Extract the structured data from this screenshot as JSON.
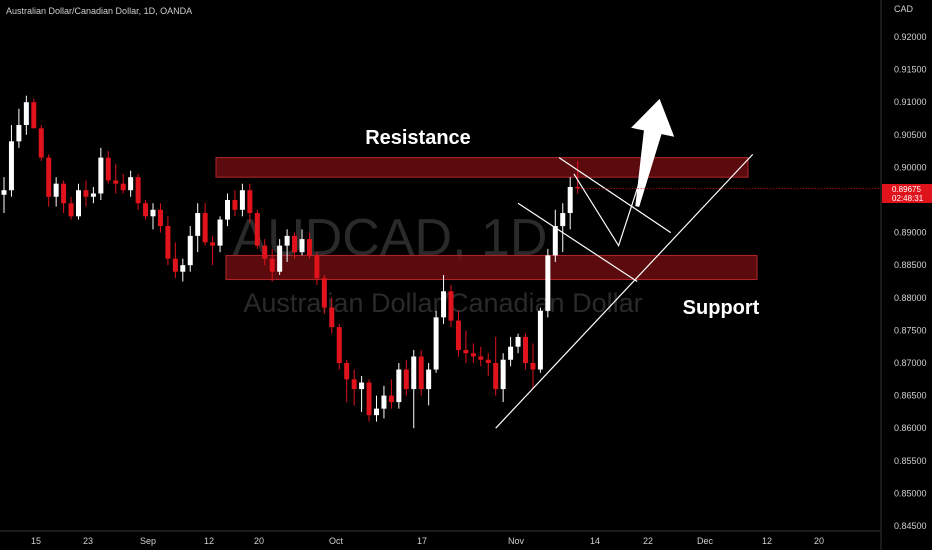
{
  "header": {
    "title": "Australian Dollar/Canadian Dollar, 1D, OANDA"
  },
  "watermark": {
    "symbol": "AUDCAD, 1D",
    "name": "Australian Dollar/Canadian Dollar"
  },
  "price_axis": {
    "currency": "CAD",
    "labels": [
      "0.92000",
      "0.91500",
      "0.91000",
      "0.90500",
      "0.90000",
      "0.89500",
      "0.89000",
      "0.88500",
      "0.88000",
      "0.87500",
      "0.87000",
      "0.86500",
      "0.86000",
      "0.85500",
      "0.85000",
      "0.84500"
    ],
    "last_price": "0.89675",
    "countdown": "02:48:31"
  },
  "time_axis": {
    "labels": [
      "15",
      "23",
      "Sep",
      "12",
      "20",
      "Oct",
      "17",
      "Nov",
      "14",
      "22",
      "Dec",
      "12",
      "20"
    ]
  },
  "annotations": {
    "resistance": "Resistance",
    "support": "Support"
  },
  "colors": {
    "background": "#000000",
    "up": "#ffffff",
    "down": "#e0121b",
    "zone": "#6b0d0f",
    "zone_border": "#b3262b",
    "price_tag": "#e0121b"
  },
  "chart_data": {
    "type": "candlestick",
    "symbol": "AUDCAD",
    "timeframe": "1D",
    "title": "Australian Dollar/Canadian Dollar, 1D, OANDA",
    "ylim": [
      0.8445,
      0.9235
    ],
    "zones": [
      {
        "label": "Resistance",
        "from": 0.8985,
        "to": 0.9015
      },
      {
        "label": "Support",
        "from": 0.8828,
        "to": 0.8865
      }
    ],
    "candles": [
      {
        "o": 0.8958,
        "h": 0.8985,
        "l": 0.893,
        "c": 0.8965
      },
      {
        "o": 0.8965,
        "h": 0.9065,
        "l": 0.8955,
        "c": 0.904
      },
      {
        "o": 0.904,
        "h": 0.909,
        "l": 0.903,
        "c": 0.9065
      },
      {
        "o": 0.9065,
        "h": 0.911,
        "l": 0.905,
        "c": 0.91
      },
      {
        "o": 0.91,
        "h": 0.9105,
        "l": 0.906,
        "c": 0.906
      },
      {
        "o": 0.906,
        "h": 0.9065,
        "l": 0.901,
        "c": 0.9015
      },
      {
        "o": 0.9015,
        "h": 0.902,
        "l": 0.894,
        "c": 0.8955
      },
      {
        "o": 0.8955,
        "h": 0.8985,
        "l": 0.894,
        "c": 0.8975
      },
      {
        "o": 0.8975,
        "h": 0.898,
        "l": 0.893,
        "c": 0.8945
      },
      {
        "o": 0.8945,
        "h": 0.8955,
        "l": 0.892,
        "c": 0.8925
      },
      {
        "o": 0.8925,
        "h": 0.8975,
        "l": 0.892,
        "c": 0.8965
      },
      {
        "o": 0.8965,
        "h": 0.898,
        "l": 0.894,
        "c": 0.8955
      },
      {
        "o": 0.8955,
        "h": 0.897,
        "l": 0.8945,
        "c": 0.896
      },
      {
        "o": 0.896,
        "h": 0.903,
        "l": 0.895,
        "c": 0.9015
      },
      {
        "o": 0.9015,
        "h": 0.9025,
        "l": 0.8975,
        "c": 0.898
      },
      {
        "o": 0.898,
        "h": 0.9005,
        "l": 0.896,
        "c": 0.8975
      },
      {
        "o": 0.8975,
        "h": 0.899,
        "l": 0.896,
        "c": 0.8965
      },
      {
        "o": 0.8965,
        "h": 0.8995,
        "l": 0.8955,
        "c": 0.8985
      },
      {
        "o": 0.8985,
        "h": 0.899,
        "l": 0.8935,
        "c": 0.8945
      },
      {
        "o": 0.8945,
        "h": 0.895,
        "l": 0.892,
        "c": 0.8925
      },
      {
        "o": 0.8925,
        "h": 0.8945,
        "l": 0.8905,
        "c": 0.8935
      },
      {
        "o": 0.8935,
        "h": 0.8945,
        "l": 0.89,
        "c": 0.891
      },
      {
        "o": 0.891,
        "h": 0.8925,
        "l": 0.885,
        "c": 0.886
      },
      {
        "o": 0.886,
        "h": 0.8885,
        "l": 0.883,
        "c": 0.884
      },
      {
        "o": 0.884,
        "h": 0.886,
        "l": 0.8825,
        "c": 0.885
      },
      {
        "o": 0.885,
        "h": 0.891,
        "l": 0.884,
        "c": 0.8895
      },
      {
        "o": 0.8895,
        "h": 0.8945,
        "l": 0.887,
        "c": 0.893
      },
      {
        "o": 0.893,
        "h": 0.8945,
        "l": 0.888,
        "c": 0.8885
      },
      {
        "o": 0.8885,
        "h": 0.8895,
        "l": 0.885,
        "c": 0.888
      },
      {
        "o": 0.888,
        "h": 0.8925,
        "l": 0.887,
        "c": 0.892
      },
      {
        "o": 0.892,
        "h": 0.896,
        "l": 0.891,
        "c": 0.895
      },
      {
        "o": 0.895,
        "h": 0.8965,
        "l": 0.8925,
        "c": 0.8935
      },
      {
        "o": 0.8935,
        "h": 0.8975,
        "l": 0.8925,
        "c": 0.8965
      },
      {
        "o": 0.8965,
        "h": 0.8975,
        "l": 0.8915,
        "c": 0.893
      },
      {
        "o": 0.893,
        "h": 0.8935,
        "l": 0.8875,
        "c": 0.888
      },
      {
        "o": 0.888,
        "h": 0.889,
        "l": 0.885,
        "c": 0.886
      },
      {
        "o": 0.886,
        "h": 0.8875,
        "l": 0.8825,
        "c": 0.884
      },
      {
        "o": 0.884,
        "h": 0.889,
        "l": 0.8835,
        "c": 0.888
      },
      {
        "o": 0.888,
        "h": 0.8905,
        "l": 0.8855,
        "c": 0.8895
      },
      {
        "o": 0.8895,
        "h": 0.89,
        "l": 0.886,
        "c": 0.887
      },
      {
        "o": 0.887,
        "h": 0.8905,
        "l": 0.8865,
        "c": 0.889
      },
      {
        "o": 0.889,
        "h": 0.89,
        "l": 0.886,
        "c": 0.8865
      },
      {
        "o": 0.8865,
        "h": 0.887,
        "l": 0.882,
        "c": 0.883
      },
      {
        "o": 0.883,
        "h": 0.8835,
        "l": 0.8775,
        "c": 0.8785
      },
      {
        "o": 0.8785,
        "h": 0.88,
        "l": 0.8745,
        "c": 0.8755
      },
      {
        "o": 0.8755,
        "h": 0.876,
        "l": 0.869,
        "c": 0.87
      },
      {
        "o": 0.87,
        "h": 0.8705,
        "l": 0.864,
        "c": 0.8675
      },
      {
        "o": 0.8675,
        "h": 0.869,
        "l": 0.8635,
        "c": 0.866
      },
      {
        "o": 0.866,
        "h": 0.868,
        "l": 0.8625,
        "c": 0.867
      },
      {
        "o": 0.867,
        "h": 0.8675,
        "l": 0.861,
        "c": 0.862
      },
      {
        "o": 0.862,
        "h": 0.865,
        "l": 0.861,
        "c": 0.863
      },
      {
        "o": 0.863,
        "h": 0.8665,
        "l": 0.8615,
        "c": 0.865
      },
      {
        "o": 0.865,
        "h": 0.8675,
        "l": 0.863,
        "c": 0.864
      },
      {
        "o": 0.864,
        "h": 0.87,
        "l": 0.863,
        "c": 0.869
      },
      {
        "o": 0.869,
        "h": 0.8705,
        "l": 0.865,
        "c": 0.866
      },
      {
        "o": 0.866,
        "h": 0.872,
        "l": 0.86,
        "c": 0.871
      },
      {
        "o": 0.871,
        "h": 0.872,
        "l": 0.865,
        "c": 0.866
      },
      {
        "o": 0.866,
        "h": 0.87,
        "l": 0.8635,
        "c": 0.869
      },
      {
        "o": 0.869,
        "h": 0.878,
        "l": 0.8685,
        "c": 0.877
      },
      {
        "o": 0.877,
        "h": 0.8835,
        "l": 0.876,
        "c": 0.881
      },
      {
        "o": 0.881,
        "h": 0.882,
        "l": 0.8755,
        "c": 0.8765
      },
      {
        "o": 0.8765,
        "h": 0.878,
        "l": 0.871,
        "c": 0.872
      },
      {
        "o": 0.872,
        "h": 0.875,
        "l": 0.87,
        "c": 0.8715
      },
      {
        "o": 0.8715,
        "h": 0.873,
        "l": 0.87,
        "c": 0.871
      },
      {
        "o": 0.871,
        "h": 0.8725,
        "l": 0.8695,
        "c": 0.8705
      },
      {
        "o": 0.8705,
        "h": 0.8715,
        "l": 0.868,
        "c": 0.87
      },
      {
        "o": 0.87,
        "h": 0.874,
        "l": 0.865,
        "c": 0.866
      },
      {
        "o": 0.866,
        "h": 0.8715,
        "l": 0.864,
        "c": 0.8705
      },
      {
        "o": 0.8705,
        "h": 0.874,
        "l": 0.8695,
        "c": 0.8725
      },
      {
        "o": 0.8725,
        "h": 0.8745,
        "l": 0.8715,
        "c": 0.874
      },
      {
        "o": 0.874,
        "h": 0.8745,
        "l": 0.869,
        "c": 0.87
      },
      {
        "o": 0.87,
        "h": 0.873,
        "l": 0.866,
        "c": 0.869
      },
      {
        "o": 0.869,
        "h": 0.8785,
        "l": 0.8685,
        "c": 0.878
      },
      {
        "o": 0.878,
        "h": 0.8875,
        "l": 0.877,
        "c": 0.8865
      },
      {
        "o": 0.8865,
        "h": 0.8935,
        "l": 0.8855,
        "c": 0.891
      },
      {
        "o": 0.891,
        "h": 0.8945,
        "l": 0.887,
        "c": 0.893
      },
      {
        "o": 0.893,
        "h": 0.8985,
        "l": 0.8905,
        "c": 0.897
      },
      {
        "o": 0.897,
        "h": 0.901,
        "l": 0.896,
        "c": 0.8968
      }
    ],
    "trendlines": [
      {
        "name": "ascending support",
        "from": {
          "idx": 66.0,
          "price": 0.86
        },
        "to": {
          "idx": 100.5,
          "price": 0.902
        }
      },
      {
        "name": "channel upper",
        "from": {
          "idx": 74.5,
          "price": 0.9015
        },
        "to": {
          "idx": 89.5,
          "price": 0.89
        }
      },
      {
        "name": "channel lower",
        "from": {
          "idx": 69.0,
          "price": 0.8945
        },
        "to": {
          "idx": 85.0,
          "price": 0.8825
        }
      }
    ],
    "projection": [
      {
        "idx": 76.5,
        "price": 0.899
      },
      {
        "idx": 82.5,
        "price": 0.888
      },
      {
        "idx": 86.5,
        "price": 0.902
      }
    ],
    "projection_arrow": {
      "from": {
        "idx": 85.0,
        "price": 0.894
      },
      "to": {
        "idx": 88.0,
        "price": 0.9105
      }
    }
  }
}
